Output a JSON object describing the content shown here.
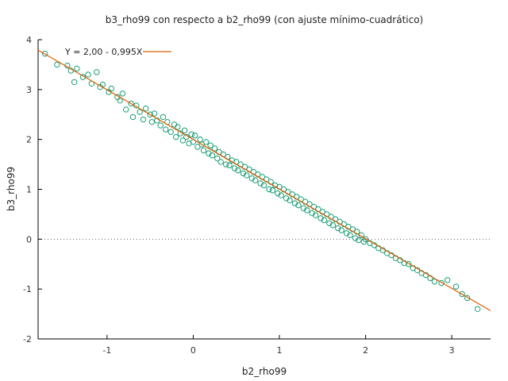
{
  "chart_data": {
    "type": "scatter",
    "title": "b3_rho99 con respecto a b2_rho99 (con ajuste mínimo-cuadrático)",
    "xlabel": "b2_rho99",
    "ylabel": "b3_rho99",
    "xlim": [
      -1.8,
      3.45
    ],
    "ylim": [
      -2,
      4
    ],
    "xticks": [
      -1,
      0,
      1,
      2,
      3
    ],
    "yticks": [
      -2,
      -1,
      0,
      1,
      2,
      3,
      4
    ],
    "xtick_labels": [
      "-1",
      "0",
      "1",
      "2",
      "3"
    ],
    "ytick_labels": [
      "-2",
      "-1",
      "0",
      "1",
      "2",
      "3",
      "4"
    ],
    "zero_line": true,
    "grid": false,
    "legend_position": "top-left",
    "colors": {
      "points": "#1b9e77",
      "fit_line": "#d95f02",
      "zero_line": "#666666",
      "axis": "#000000"
    },
    "fit": {
      "label": "Y = 2,00 - 0,995X",
      "intercept": 2.0,
      "slope": -0.995
    },
    "series": [
      {
        "x": [
          -1.72,
          -1.58,
          -1.46,
          -1.42,
          -1.38,
          -1.35,
          -1.28,
          -1.22,
          -1.18,
          -1.12,
          -1.08,
          -1.05,
          -0.98,
          -0.95,
          -0.88,
          -0.85,
          -0.82,
          -0.78,
          -0.72,
          -0.7,
          -0.66,
          -0.62,
          -0.58,
          -0.55,
          -0.5,
          -0.48,
          -0.45,
          -0.42,
          -0.38,
          -0.35,
          -0.32,
          -0.3,
          -0.26,
          -0.22,
          -0.2,
          -0.18,
          -0.15,
          -0.12,
          -0.1,
          -0.08,
          -0.05,
          -0.02,
          0.0,
          0.02,
          0.05,
          0.08,
          0.1,
          0.12,
          0.15,
          0.18,
          0.2,
          0.22,
          0.25,
          0.28,
          0.3,
          0.32,
          0.35,
          0.38,
          0.4,
          0.42,
          0.45,
          0.48,
          0.5,
          0.52,
          0.55,
          0.58,
          0.6,
          0.62,
          0.65,
          0.68,
          0.7,
          0.72,
          0.75,
          0.78,
          0.8,
          0.82,
          0.85,
          0.88,
          0.9,
          0.92,
          0.95,
          0.98,
          1.0,
          1.02,
          1.05,
          1.08,
          1.1,
          1.12,
          1.15,
          1.18,
          1.2,
          1.22,
          1.25,
          1.28,
          1.3,
          1.32,
          1.35,
          1.38,
          1.4,
          1.42,
          1.45,
          1.48,
          1.5,
          1.52,
          1.55,
          1.58,
          1.6,
          1.62,
          1.65,
          1.68,
          1.7,
          1.72,
          1.75,
          1.78,
          1.8,
          1.82,
          1.85,
          1.88,
          1.9,
          1.92,
          1.95,
          1.98,
          2.0,
          2.05,
          2.1,
          2.15,
          2.2,
          2.25,
          2.3,
          2.35,
          2.4,
          2.45,
          2.5,
          2.55,
          2.6,
          2.65,
          2.7,
          2.75,
          2.8,
          2.88,
          2.95,
          3.05,
          3.12,
          3.18,
          3.3
        ],
        "y": [
          3.72,
          3.5,
          3.48,
          3.38,
          3.15,
          3.42,
          3.25,
          3.3,
          3.12,
          3.35,
          3.05,
          3.1,
          2.95,
          3.02,
          2.85,
          2.78,
          2.92,
          2.6,
          2.72,
          2.45,
          2.68,
          2.55,
          2.4,
          2.62,
          2.5,
          2.35,
          2.52,
          2.38,
          2.28,
          2.45,
          2.2,
          2.35,
          2.15,
          2.3,
          2.05,
          2.25,
          2.12,
          1.98,
          2.18,
          2.05,
          1.92,
          2.1,
          1.95,
          2.08,
          1.85,
          2.0,
          1.9,
          1.78,
          1.95,
          1.72,
          1.88,
          1.68,
          1.82,
          1.62,
          1.75,
          1.55,
          1.7,
          1.5,
          1.65,
          1.48,
          1.58,
          1.42,
          1.55,
          1.38,
          1.5,
          1.32,
          1.45,
          1.28,
          1.4,
          1.22,
          1.35,
          1.18,
          1.3,
          1.12,
          1.25,
          1.08,
          1.2,
          1.0,
          1.15,
          0.98,
          1.08,
          0.92,
          1.05,
          0.88,
          1.0,
          0.82,
          0.95,
          0.78,
          0.9,
          0.72,
          0.85,
          0.68,
          0.8,
          0.62,
          0.75,
          0.58,
          0.7,
          0.52,
          0.65,
          0.48,
          0.6,
          0.42,
          0.55,
          0.38,
          0.5,
          0.32,
          0.45,
          0.28,
          0.4,
          0.22,
          0.35,
          0.18,
          0.3,
          0.12,
          0.25,
          0.08,
          0.2,
          0.02,
          0.15,
          -0.02,
          0.08,
          -0.05,
          0.0,
          -0.08,
          -0.12,
          -0.18,
          -0.22,
          -0.28,
          -0.32,
          -0.38,
          -0.42,
          -0.48,
          -0.5,
          -0.58,
          -0.62,
          -0.68,
          -0.72,
          -0.78,
          -0.85,
          -0.88,
          -0.82,
          -0.95,
          -1.1,
          -1.18,
          -1.4
        ]
      }
    ]
  }
}
